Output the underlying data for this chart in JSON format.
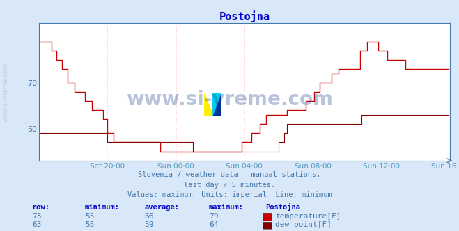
{
  "title": "Postojna",
  "bg_color": "#d8e8f8",
  "plot_bg_color": "#ffffff",
  "title_color": "#0000cc",
  "axis_color": "#4477aa",
  "text_color": "#4477aa",
  "label_color": "#5599bb",
  "line1_color": "#cc0000",
  "line2_color": "#880000",
  "grid_color": "#ffcccc",
  "ylim": [
    53,
    83
  ],
  "yticks": [
    60,
    70
  ],
  "n_points": 288,
  "xtick_positions": [
    48,
    96,
    144,
    192,
    240,
    288
  ],
  "xtick_labels": [
    "Sat 20:00",
    "Sun 00:00",
    "Sun 04:00",
    "Sun 08:00",
    "Sun 12:00",
    "Sun 16:00"
  ],
  "subtitle1": "Slovenia / weather data - manual stations.",
  "subtitle2": "last day / 5 minutes.",
  "subtitle3": "Values: maximum  Units: imperial  Line: minimum",
  "watermark": "www.si-vreme.com",
  "legend_headers": [
    "now:",
    "minimum:",
    "average:",
    "maximum:",
    "Postojna"
  ],
  "legend_row1": [
    "73",
    "55",
    "66",
    "79",
    "temperature[F]"
  ],
  "legend_row2": [
    "63",
    "55",
    "59",
    "64",
    "dew point[F]"
  ],
  "temp_data": [
    79,
    79,
    79,
    79,
    79,
    79,
    79,
    79,
    79,
    77,
    77,
    77,
    75,
    75,
    75,
    75,
    73,
    73,
    73,
    73,
    70,
    70,
    70,
    70,
    70,
    68,
    68,
    68,
    68,
    68,
    68,
    68,
    66,
    66,
    66,
    66,
    66,
    64,
    64,
    64,
    64,
    64,
    64,
    64,
    64,
    62,
    62,
    62,
    59,
    59,
    59,
    59,
    57,
    57,
    57,
    57,
    57,
    57,
    57,
    57,
    57,
    57,
    57,
    57,
    57,
    57,
    57,
    57,
    57,
    57,
    57,
    57,
    57,
    57,
    57,
    57,
    57,
    57,
    57,
    57,
    57,
    57,
    57,
    57,
    57,
    55,
    55,
    55,
    55,
    55,
    55,
    55,
    55,
    55,
    55,
    55,
    55,
    55,
    55,
    55,
    55,
    55,
    55,
    55,
    55,
    55,
    55,
    55,
    55,
    55,
    55,
    55,
    55,
    55,
    55,
    55,
    55,
    55,
    55,
    55,
    55,
    55,
    55,
    55,
    55,
    55,
    55,
    55,
    55,
    55,
    55,
    55,
    55,
    55,
    55,
    55,
    55,
    55,
    55,
    55,
    55,
    55,
    57,
    57,
    57,
    57,
    57,
    57,
    57,
    59,
    59,
    59,
    59,
    59,
    59,
    61,
    61,
    61,
    61,
    63,
    63,
    63,
    63,
    63,
    63,
    63,
    63,
    63,
    63,
    63,
    63,
    63,
    63,
    63,
    64,
    64,
    64,
    64,
    64,
    64,
    64,
    64,
    64,
    64,
    64,
    64,
    64,
    66,
    66,
    66,
    66,
    66,
    66,
    68,
    68,
    68,
    68,
    70,
    70,
    70,
    70,
    70,
    70,
    70,
    70,
    72,
    72,
    72,
    72,
    72,
    73,
    73,
    73,
    73,
    73,
    73,
    73,
    73,
    73,
    73,
    73,
    73,
    73,
    73,
    73,
    77,
    77,
    77,
    77,
    77,
    79,
    79,
    79,
    79,
    79,
    79,
    79,
    79,
    77,
    77,
    77,
    77,
    77,
    77,
    75,
    75,
    75,
    75,
    75,
    75,
    75,
    75,
    75,
    75,
    75,
    75,
    75,
    73,
    73,
    73,
    73,
    73,
    73,
    73,
    73,
    73,
    73,
    73,
    73,
    73,
    73,
    73,
    73,
    73,
    73,
    73,
    73,
    73,
    73,
    73,
    73,
    73,
    73,
    73,
    73,
    73,
    73
  ],
  "dew_data": [
    59,
    59,
    59,
    59,
    59,
    59,
    59,
    59,
    59,
    59,
    59,
    59,
    59,
    59,
    59,
    59,
    59,
    59,
    59,
    59,
    59,
    59,
    59,
    59,
    59,
    59,
    59,
    59,
    59,
    59,
    59,
    59,
    59,
    59,
    59,
    59,
    59,
    59,
    59,
    59,
    59,
    59,
    59,
    59,
    59,
    59,
    59,
    59,
    57,
    57,
    57,
    57,
    57,
    57,
    57,
    57,
    57,
    57,
    57,
    57,
    57,
    57,
    57,
    57,
    57,
    57,
    57,
    57,
    57,
    57,
    57,
    57,
    57,
    57,
    57,
    57,
    57,
    57,
    57,
    57,
    57,
    57,
    57,
    57,
    57,
    57,
    57,
    57,
    57,
    57,
    57,
    57,
    57,
    57,
    57,
    57,
    57,
    57,
    57,
    57,
    57,
    57,
    57,
    57,
    57,
    57,
    57,
    57,
    55,
    55,
    55,
    55,
    55,
    55,
    55,
    55,
    55,
    55,
    55,
    55,
    55,
    55,
    55,
    55,
    55,
    55,
    55,
    55,
    55,
    55,
    55,
    55,
    55,
    55,
    55,
    55,
    55,
    55,
    55,
    55,
    55,
    55,
    55,
    55,
    55,
    55,
    55,
    55,
    55,
    55,
    55,
    55,
    55,
    55,
    55,
    55,
    55,
    55,
    55,
    55,
    55,
    55,
    55,
    55,
    55,
    55,
    55,
    55,
    57,
    57,
    57,
    57,
    59,
    59,
    61,
    61,
    61,
    61,
    61,
    61,
    61,
    61,
    61,
    61,
    61,
    61,
    61,
    61,
    61,
    61,
    61,
    61,
    61,
    61,
    61,
    61,
    61,
    61,
    61,
    61,
    61,
    61,
    61,
    61,
    61,
    61,
    61,
    61,
    61,
    61,
    61,
    61,
    61,
    61,
    61,
    61,
    61,
    61,
    61,
    61,
    61,
    61,
    61,
    61,
    61,
    61,
    63,
    63,
    63,
    63,
    63,
    63,
    63,
    63,
    63,
    63,
    63,
    63,
    63,
    63,
    63,
    63,
    63,
    63,
    63,
    63,
    63,
    63,
    63,
    63,
    63,
    63,
    63,
    63,
    63,
    63,
    63,
    63,
    63,
    63,
    63,
    63,
    63,
    63,
    63,
    63,
    63,
    63,
    63,
    63,
    63,
    63,
    63,
    63,
    63,
    63,
    63,
    63,
    63,
    63,
    63,
    63,
    63,
    63,
    63,
    63,
    63,
    63,
    63,
    63,
    63,
    63,
    63,
    63,
    63,
    63,
    63,
    63
  ]
}
